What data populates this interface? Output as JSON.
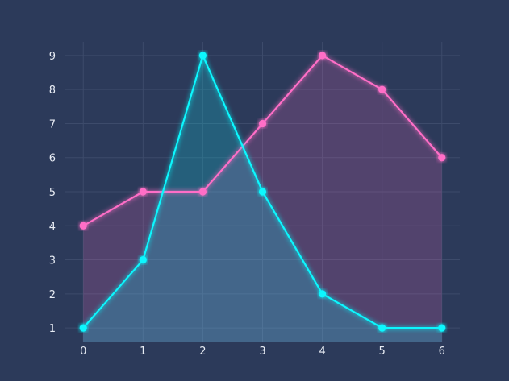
{
  "chart_data": {
    "type": "area",
    "x": [
      0,
      1,
      2,
      3,
      4,
      5,
      6
    ],
    "xlim": [
      -0.3,
      6.3
    ],
    "ylim": [
      0.6,
      9.4
    ],
    "xticks": [
      0,
      1,
      2,
      3,
      4,
      5,
      6
    ],
    "yticks": [
      1,
      2,
      3,
      4,
      5,
      6,
      7,
      8,
      9
    ],
    "grid": true,
    "title": "",
    "xlabel": "",
    "ylabel": "",
    "series": [
      {
        "values": [
          4,
          5,
          5,
          7,
          9,
          8,
          6
        ],
        "color": "#ff6ec7"
      },
      {
        "values": [
          1,
          3,
          9,
          5,
          2,
          1,
          1
        ],
        "color": "#08f7fe"
      }
    ],
    "background": "#2c3a5a"
  }
}
